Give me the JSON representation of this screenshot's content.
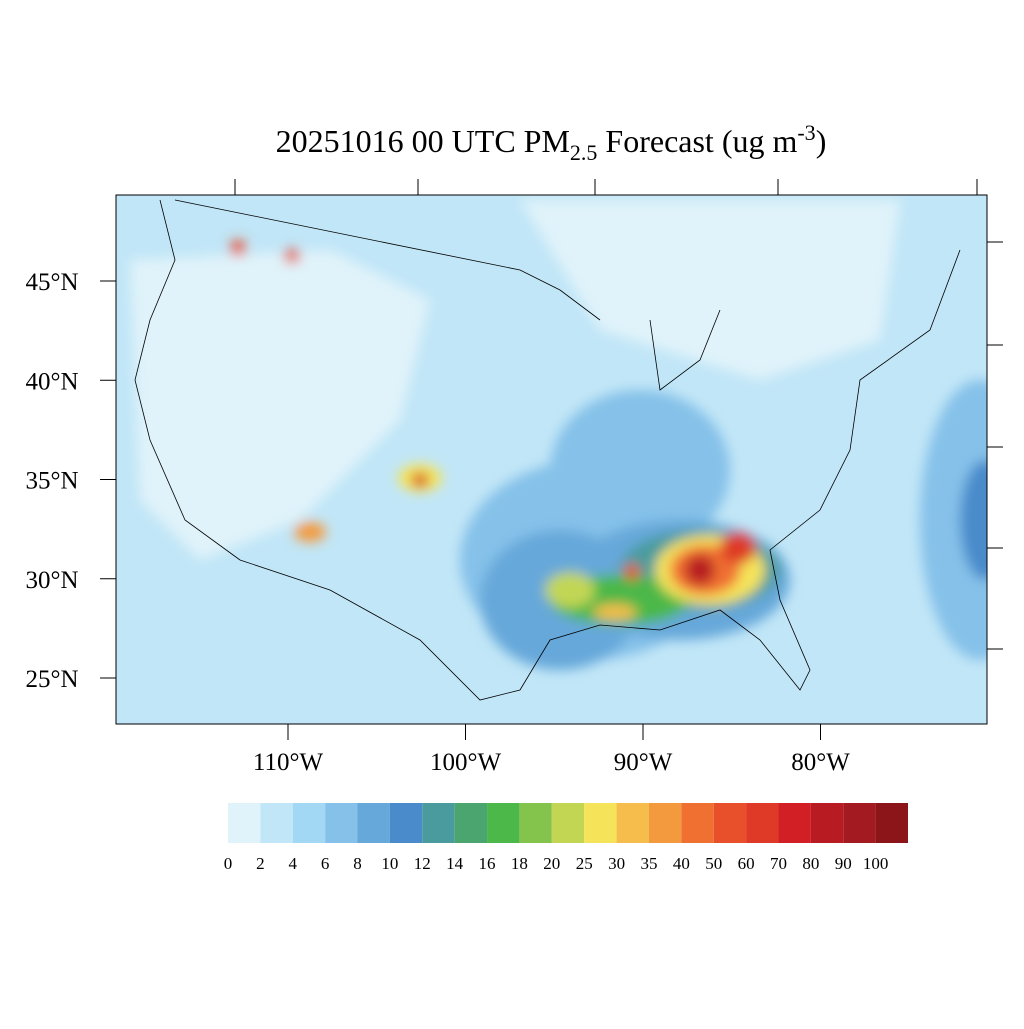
{
  "header": {
    "title_main": "20251016 00 UTC PM",
    "title_sub": "2.5",
    "title_rest": " Forecast (ug m",
    "title_sup": "-3",
    "title_end": ")"
  },
  "map": {
    "lat_ticks": [
      {
        "value": 45,
        "label": "45°N"
      },
      {
        "value": 40,
        "label": "40°N"
      },
      {
        "value": 35,
        "label": "35°N"
      },
      {
        "value": 30,
        "label": "30°N"
      },
      {
        "value": 25,
        "label": "25°N"
      }
    ],
    "lon_ticks": [
      {
        "value": -110,
        "label": "110°W"
      },
      {
        "value": -100,
        "label": "100°W"
      },
      {
        "value": -90,
        "label": "90°W"
      },
      {
        "value": -80,
        "label": "80°W"
      }
    ]
  },
  "colorbar": {
    "levels": [
      0,
      2,
      4,
      6,
      8,
      10,
      12,
      14,
      16,
      18,
      20,
      25,
      30,
      35,
      40,
      50,
      60,
      70,
      80,
      90,
      100
    ],
    "colors": [
      "#e0f3fa",
      "#c1e6f7",
      "#a3d8f4",
      "#85c1e9",
      "#66a8da",
      "#4a8bcb",
      "#4a9b9e",
      "#4aa56e",
      "#4cb84a",
      "#85c44c",
      "#c2d654",
      "#f5e45a",
      "#f7bd4c",
      "#f49a3e",
      "#f07031",
      "#e8502c",
      "#de3a27",
      "#d21f26",
      "#b81b22",
      "#a31a20",
      "#8c1519"
    ]
  }
}
